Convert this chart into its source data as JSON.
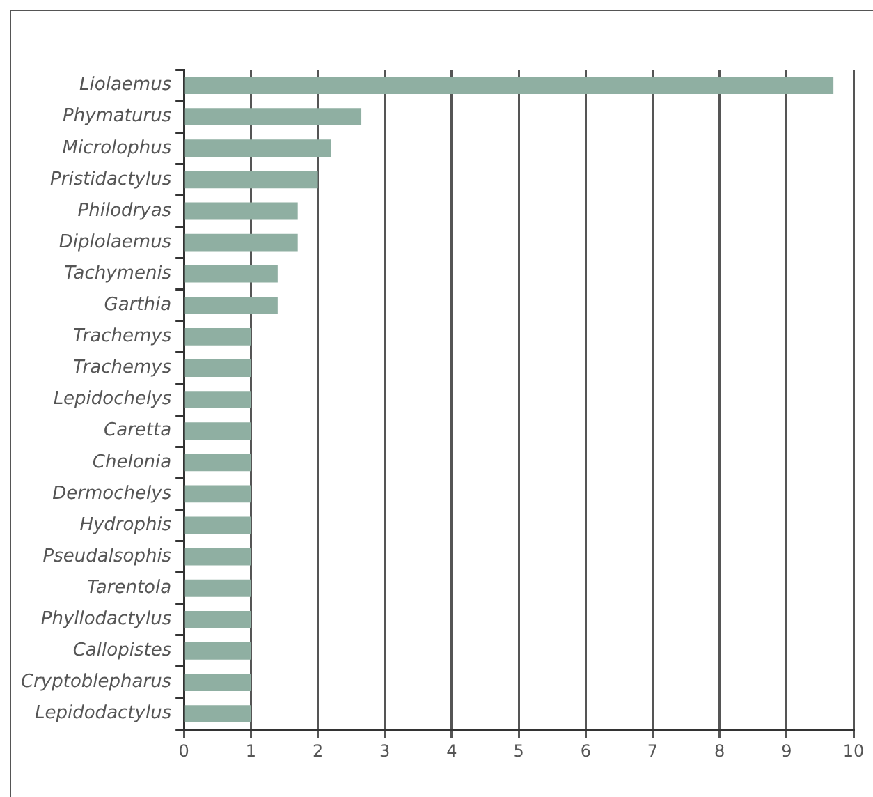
{
  "chart_data": {
    "type": "bar",
    "orientation": "horizontal",
    "categories": [
      "Liolaemus",
      "Phymaturus",
      "Microlophus",
      "Pristidactylus",
      "Philodryas",
      "Diplolaemus",
      "Tachymenis",
      "Garthia",
      "Trachemys",
      "Trachemys",
      "Lepidochelys",
      "Caretta",
      "Chelonia",
      "Dermochelys",
      "Hydrophis",
      "Pseudalsophis",
      "Tarentola",
      "Phyllodactylus",
      "Callopistes",
      "Cryptoblepharus",
      "Lepidodactylus"
    ],
    "values": [
      9.7,
      2.65,
      2.2,
      2.0,
      1.7,
      1.7,
      1.4,
      1.4,
      1,
      1,
      1,
      1,
      1,
      1,
      1,
      1,
      1,
      1,
      1,
      1,
      1
    ],
    "color": "#8fafa2",
    "xlim": [
      0,
      10
    ],
    "xticks": [
      0,
      1,
      2,
      3,
      4,
      5,
      6,
      7,
      8,
      9,
      10
    ],
    "grid": "x",
    "legend": false
  }
}
